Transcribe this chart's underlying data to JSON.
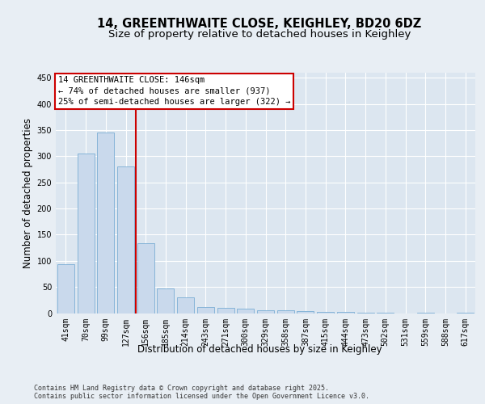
{
  "title1": "14, GREENTHWAITE CLOSE, KEIGHLEY, BD20 6DZ",
  "title2": "Size of property relative to detached houses in Keighley",
  "xlabel": "Distribution of detached houses by size in Keighley",
  "ylabel": "Number of detached properties",
  "categories": [
    "41sqm",
    "70sqm",
    "99sqm",
    "127sqm",
    "156sqm",
    "185sqm",
    "214sqm",
    "243sqm",
    "271sqm",
    "300sqm",
    "329sqm",
    "358sqm",
    "387sqm",
    "415sqm",
    "444sqm",
    "473sqm",
    "502sqm",
    "531sqm",
    "559sqm",
    "588sqm",
    "617sqm"
  ],
  "values": [
    93,
    305,
    345,
    280,
    133,
    47,
    30,
    11,
    10,
    8,
    6,
    5,
    4,
    3,
    2,
    1,
    1,
    0,
    1,
    0,
    1
  ],
  "bar_color": "#c9d9ec",
  "bar_edge_color": "#7aadd4",
  "bar_width": 0.85,
  "vline_x_index": 3.5,
  "vline_color": "#cc0000",
  "annotation_text": "14 GREENTHWAITE CLOSE: 146sqm\n← 74% of detached houses are smaller (937)\n25% of semi-detached houses are larger (322) →",
  "annotation_box_color": "#ffffff",
  "annotation_box_edge_color": "#cc0000",
  "ylim": [
    0,
    460
  ],
  "yticks": [
    0,
    50,
    100,
    150,
    200,
    250,
    300,
    350,
    400,
    450
  ],
  "bg_color": "#e8eef4",
  "plot_bg_color": "#dce6f0",
  "footer_text": "Contains HM Land Registry data © Crown copyright and database right 2025.\nContains public sector information licensed under the Open Government Licence v3.0.",
  "title_fontsize": 10.5,
  "subtitle_fontsize": 9.5,
  "axis_label_fontsize": 8.5,
  "tick_fontsize": 7,
  "annotation_fontsize": 7.5,
  "footer_fontsize": 6.0
}
